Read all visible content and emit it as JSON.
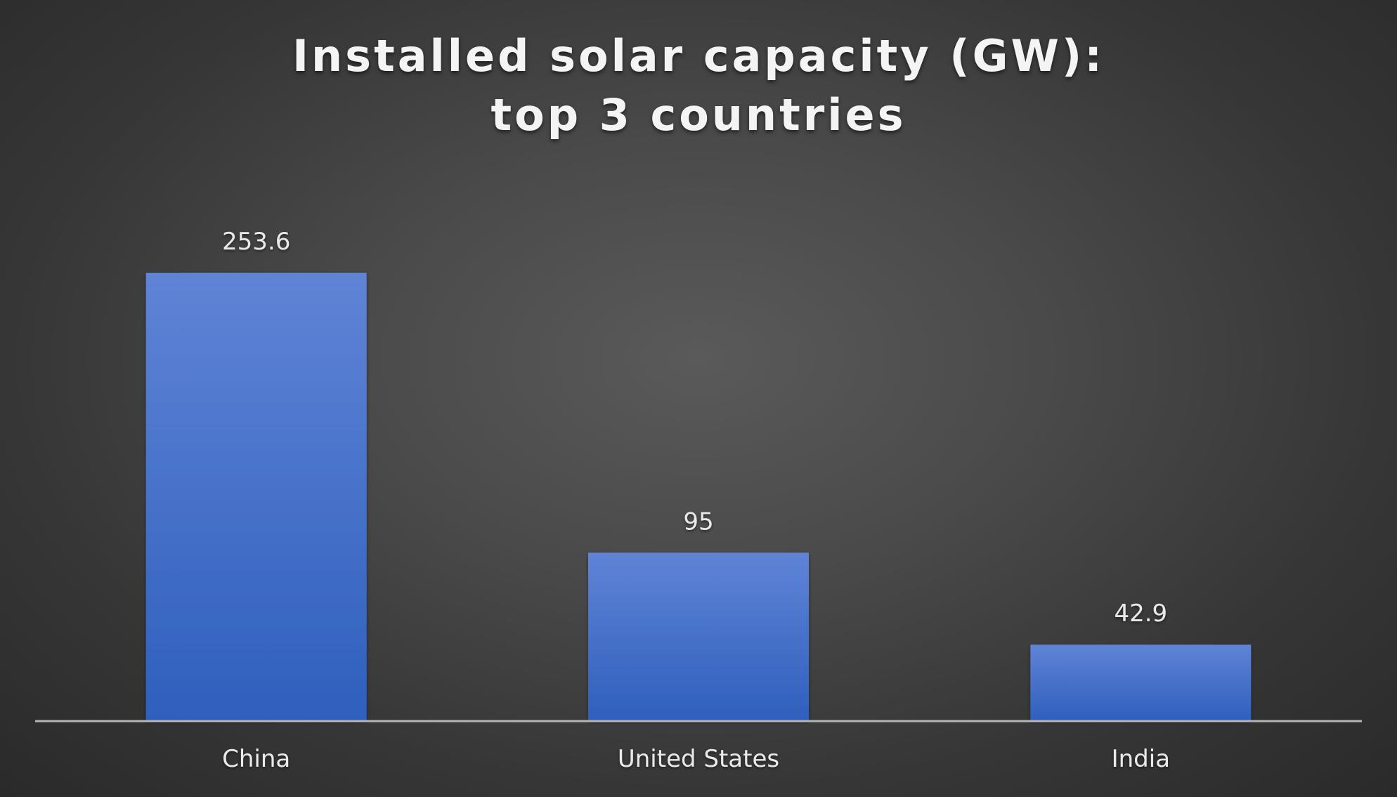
{
  "chart_data": {
    "type": "bar",
    "title": "Installed solar capacity (GW): top 3 countries",
    "categories": [
      "China",
      "United States",
      "India"
    ],
    "values": [
      253.6,
      95,
      42.9
    ],
    "data_labels": [
      "253.6",
      "95",
      "42.9"
    ],
    "xlabel": "",
    "ylabel": "",
    "ylim": [
      0,
      300
    ],
    "grid": false,
    "legend": "none"
  },
  "colors": {
    "bar_top": "#5f84d6",
    "bar_bottom": "#2f5fbd",
    "axis": "#b5b5b5",
    "label_text": "#e9e9e9",
    "title_text": "#f4f4f4"
  }
}
